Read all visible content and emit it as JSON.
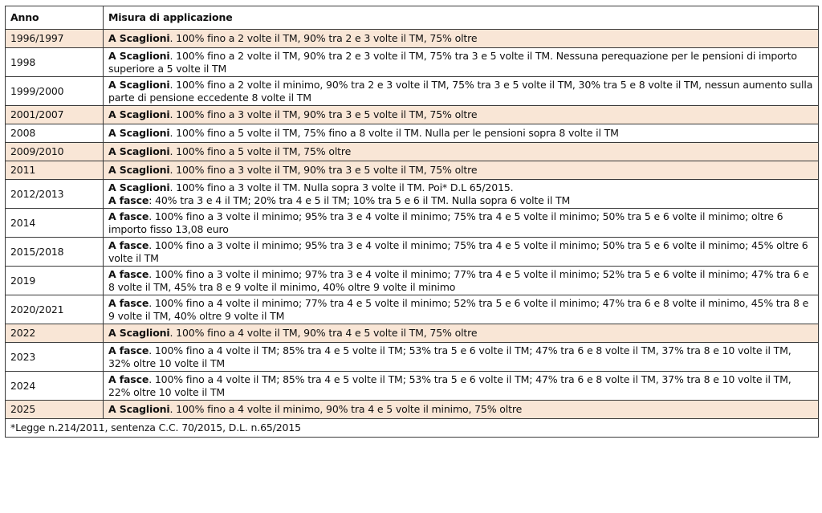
{
  "headers": {
    "year": "Anno",
    "desc": "Misura di applicazione"
  },
  "rows": [
    {
      "year": "1996/1997",
      "lead": "A Scaglioni",
      "text": ". 100% fino a 2 volte il TM, 90% tra 2 e 3 volte il TM, 75% oltre",
      "highlight": true
    },
    {
      "year": "1998",
      "lead": "A Scaglioni",
      "text": ". 100% fino a 2 volte il TM, 90% tra 2 e 3 volte il TM, 75% tra 3 e 5 volte il TM. Nessuna perequazione per le pensioni di importo superiore a 5 volte il TM",
      "highlight": false
    },
    {
      "year": "1999/2000",
      "lead": "A Scaglioni",
      "text": ". 100% fino a 2 volte il minimo, 90% tra 2 e 3 volte il TM, 75% tra 3 e 5 volte il TM, 30% tra 5 e 8 volte il TM, nessun aumento sulla parte di pensione eccedente 8 volte il TM",
      "highlight": false
    },
    {
      "year": "2001/2007",
      "lead": "A Scaglioni",
      "text": ". 100% fino a 3 volte il TM, 90% tra 3 e 5 volte il TM, 75% oltre",
      "highlight": true
    },
    {
      "year": "2008",
      "lead": "A Scaglioni",
      "text": ". 100% fino a 5 volte il TM, 75% fino a 8 volte il TM. Nulla per le pensioni sopra 8 volte il TM",
      "highlight": false
    },
    {
      "year": "2009/2010",
      "lead": "A Scaglioni",
      "text": ". 100% fino a 5 volte il TM, 75% oltre",
      "highlight": true
    },
    {
      "year": "2011",
      "lead": "A Scaglioni",
      "text": ". 100% fino a 3 volte il TM, 90% tra 3 e 5 volte il TM, 75% oltre",
      "highlight": true
    },
    {
      "year": "2012/2013",
      "lead": "A Scaglioni",
      "text": ". 100% fino a 3 volte il TM. Nulla sopra 3 volte il TM. Poi* D.L 65/2015.",
      "lead2": "A fasce",
      "text2": ": 40% tra 3 e 4 il TM; 20% tra 4 e 5 il TM; 10% tra 5 e 6 il TM. Nulla sopra 6 volte il TM",
      "highlight": false
    },
    {
      "year": "2014",
      "lead": "A fasce",
      "text": ". 100% fino a 3 volte il minimo; 95% tra 3 e 4 volte il minimo; 75% tra 4 e 5 volte il minimo; 50% tra 5 e 6 volte il minimo; oltre 6 importo fisso 13,08 euro",
      "highlight": false
    },
    {
      "year": "2015/2018",
      "lead": "A fasce",
      "text": ". 100% fino a 3 volte il minimo; 95% tra 3 e 4 volte il minimo; 75% tra 4 e 5 volte il minimo; 50% tra 5 e 6 volte il minimo; 45% oltre 6 volte il TM",
      "highlight": false
    },
    {
      "year": "2019",
      "lead": "A fasce",
      "text": ". 100% fino a 3 volte il minimo; 97% tra 3 e 4 volte il minimo; 77% tra 4 e 5 volte il minimo; 52% tra 5 e 6 volte il minimo; 47% tra 6 e 8 volte il TM, 45% tra 8 e 9 volte il minimo, 40% oltre 9 volte il minimo",
      "highlight": false
    },
    {
      "year": "2020/2021",
      "lead": "A fasce",
      "text": ". 100% fino a 4 volte il minimo; 77% tra 4 e 5 volte il minimo; 52% tra 5 e 6 volte il minimo; 47% tra 6 e 8 volte il minimo, 45% tra 8 e 9 volte il TM, 40% oltre 9 volte il TM",
      "highlight": false
    },
    {
      "year": "2022",
      "lead": "A Scaglioni",
      "text": ". 100% fino a 4 volte il TM, 90% tra 4 e 5 volte il TM, 75% oltre",
      "highlight": true
    },
    {
      "year": "2023",
      "lead": "A fasce",
      "text": ". 100% fino a 4 volte il TM; 85% tra 4 e 5 volte il TM; 53% tra 5 e 6 volte il TM; 47% tra 6 e 8 volte il TM, 37% tra 8 e 10 volte il TM, 32% oltre 10 volte il TM",
      "highlight": false
    },
    {
      "year": "2024",
      "lead": "A fasce",
      "text": ". 100% fino a 4 volte il TM; 85% tra 4 e 5 volte il TM; 53% tra 5 e 6 volte il TM; 47% tra 6 e 8 volte il TM, 37% tra 8 e 10 volte il TM, 22% oltre 10 volte il TM",
      "highlight": false
    },
    {
      "year": "2025",
      "lead": "A Scaglioni",
      "text": ". 100% fino a 4 volte il minimo, 90% tra 4 e 5 volte il minimo, 75% oltre",
      "highlight": true
    }
  ],
  "footnote": "*Legge n.214/2011, sentenza C.C. 70/2015, D.L. n.65/2015",
  "colors": {
    "highlight": "#f9e6d6",
    "border": "#3a3a3a"
  }
}
